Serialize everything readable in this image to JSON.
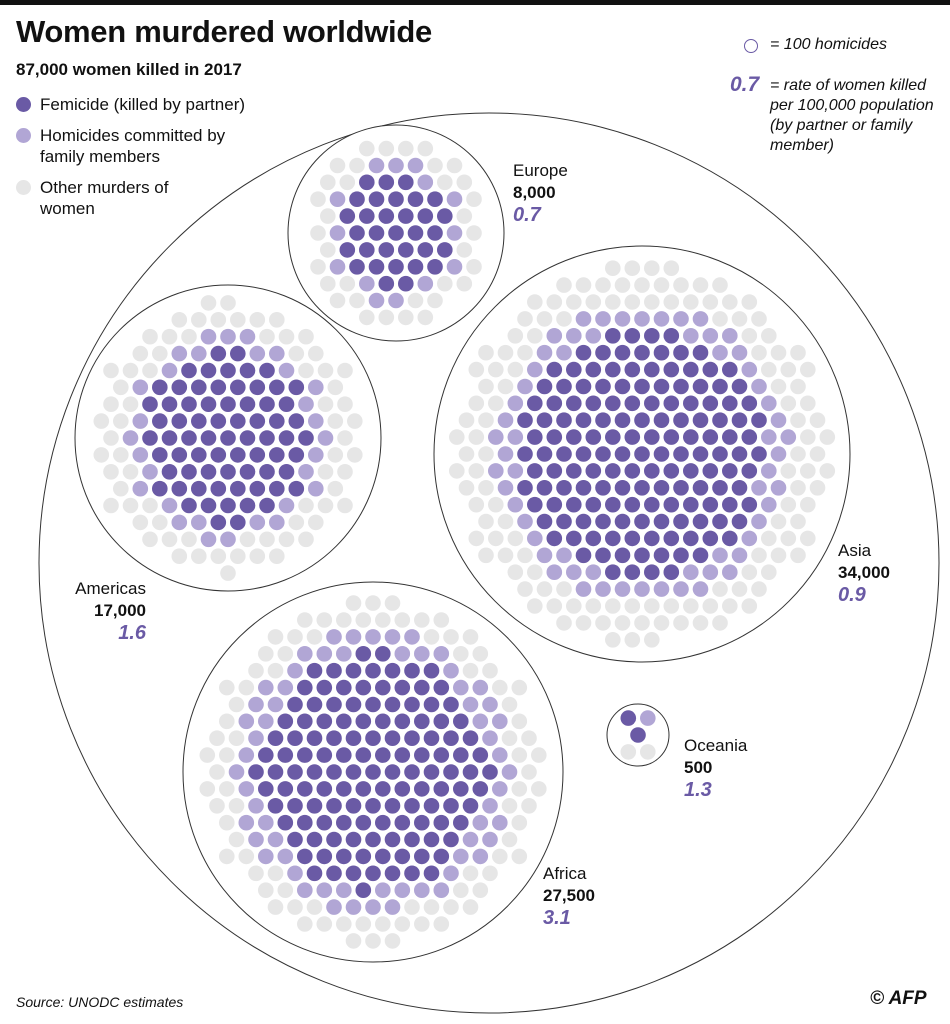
{
  "header": {
    "title": "Women murdered worldwide",
    "subtitle": "87,000 women killed in 2017"
  },
  "legend": {
    "items": [
      {
        "label": "Femicide (killed by partner)",
        "color": "#6a5aa5"
      },
      {
        "label": "Homicides committed by family members",
        "color": "#b1a6d5"
      },
      {
        "label": "Other murders of women",
        "color": "#e6e6e6"
      }
    ]
  },
  "key": {
    "circle_text": "= 100 homicides",
    "rate_value": "0.7",
    "rate_text": "= rate of women killed per 100,000 population (by partner or family member)"
  },
  "chart_data": {
    "type": "packed-dot-circles",
    "title": "Women murdered worldwide",
    "subtitle": "87,000 women killed in 2017",
    "unit": "100 homicides per dot",
    "total": 87000,
    "regions": [
      {
        "name": "Europe",
        "value_label": "8,000",
        "total": 8000,
        "rate": "0.7",
        "femicide_dots": 32,
        "family_dots": 14,
        "other_dots": 34
      },
      {
        "name": "Americas",
        "value_label": "17,000",
        "total": 17000,
        "rate": "1.6",
        "femicide_dots": 70,
        "family_dots": 30,
        "other_dots": 70
      },
      {
        "name": "Asia",
        "value_label": "34,000",
        "total": 34000,
        "rate": "0.9",
        "femicide_dots": 150,
        "family_dots": 60,
        "other_dots": 130
      },
      {
        "name": "Africa",
        "value_label": "27,500",
        "total": 27500,
        "rate": "3.1",
        "femicide_dots": 130,
        "family_dots": 60,
        "other_dots": 85
      },
      {
        "name": "Oceania",
        "value_label": "500",
        "total": 500,
        "rate": "1.3",
        "femicide_dots": 2,
        "family_dots": 1,
        "other_dots": 2
      }
    ]
  },
  "footer": {
    "source": "Source: UNODC estimates",
    "credit": "© AFP"
  }
}
